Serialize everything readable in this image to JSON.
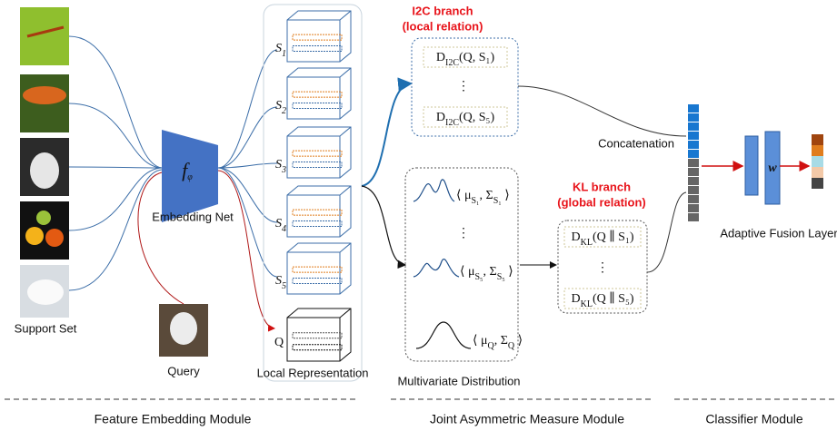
{
  "support_set": {
    "label": "Support Set"
  },
  "query": {
    "label": "Query"
  },
  "embedding": {
    "symbol": [
      "f",
      "φ"
    ],
    "label": "Embedding Net"
  },
  "local_representation": {
    "supports": [
      [
        "S",
        "1"
      ],
      [
        "S",
        "2"
      ],
      [
        "S",
        "3"
      ],
      [
        "S",
        "4"
      ],
      [
        "S",
        "5"
      ]
    ],
    "query": "Q",
    "label": "Local Representation"
  },
  "i2c_branch": {
    "title": "I2C branch",
    "subtitle": "(local relation)",
    "items": [
      [
        "D",
        "I2C",
        "(Q, S₁)"
      ],
      [
        "D",
        "I2C",
        "(Q, S₅)"
      ]
    ],
    "ellipsis": "⋮"
  },
  "distribution": {
    "items": [
      [
        "⟨ μ",
        "S₁",
        ", Σ",
        "S₁",
        " ⟩"
      ],
      [
        "⟨ μ",
        "S₅",
        ", Σ",
        "S₅",
        " ⟩"
      ],
      [
        "⟨ μ",
        "Q",
        ", Σ",
        "Q",
        " ⟩"
      ]
    ],
    "ellipsis": "⋮",
    "label": "Multivariate Distribution"
  },
  "kl_branch": {
    "title": "KL branch",
    "subtitle": "(global relation)",
    "items": [
      [
        "D",
        "KL",
        "(Q ∥ S₁)"
      ],
      [
        "D",
        "KL",
        "(Q ∥ S₅)"
      ]
    ],
    "ellipsis": "⋮"
  },
  "classifier": {
    "concat_label": "Concatenation",
    "weight": "w",
    "label": "Adaptive Fusion Layer"
  },
  "modules": [
    "Feature Embedding Module",
    "Joint Asymmetric Measure Module",
    "Classifier Module"
  ]
}
